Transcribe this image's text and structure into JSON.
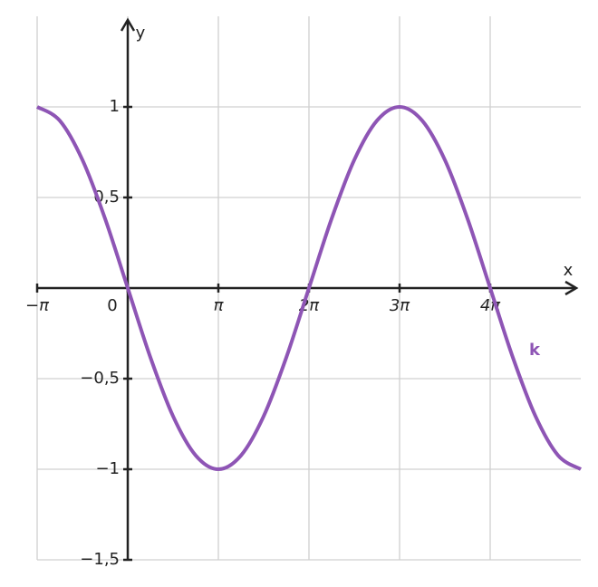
{
  "chart_data": {
    "type": "line",
    "x_label": "x",
    "y_label": "y",
    "x": [
      -3.1416,
      -2.3562,
      -1.5708,
      -0.7854,
      0,
      0.7854,
      1.5708,
      2.3562,
      3.1416,
      3.927,
      4.7124,
      5.4978,
      6.2832,
      7.0686,
      7.854,
      8.6394,
      9.4248,
      10.2102,
      10.9956,
      11.781,
      12.5664,
      13.3518,
      14.1372,
      14.9226,
      15.708
    ],
    "series": [
      {
        "name": "k",
        "color": "#8e55b5",
        "values": [
          1,
          0.9239,
          0.7071,
          0.3827,
          0,
          -0.3827,
          -0.7071,
          -0.9239,
          -1,
          -0.9239,
          -0.7071,
          -0.3827,
          0,
          0.3827,
          0.7071,
          0.9239,
          1,
          0.9239,
          0.7071,
          0.3827,
          0,
          -0.3827,
          -0.7071,
          -0.9239,
          -1
        ]
      }
    ],
    "xlim": [
      -3.1416,
      15.708
    ],
    "ylim": [
      -1.5,
      1.5
    ],
    "xticks": [
      {
        "value": -3.1416,
        "label": "−π"
      },
      0,
      {
        "value": 3.1416,
        "label": "π"
      },
      {
        "value": 6.2832,
        "label": "2π"
      },
      {
        "value": 9.4248,
        "label": "3π"
      },
      {
        "value": 12.5664,
        "label": "4π"
      }
    ],
    "yticks": [
      1,
      {
        "value": 0.5,
        "label": "0,5"
      },
      {
        "value": -0.5,
        "label": "−0,5"
      },
      {
        "value": -1,
        "label": "−1"
      },
      {
        "value": -1.5,
        "label": "−1,5"
      }
    ],
    "grid": true
  }
}
